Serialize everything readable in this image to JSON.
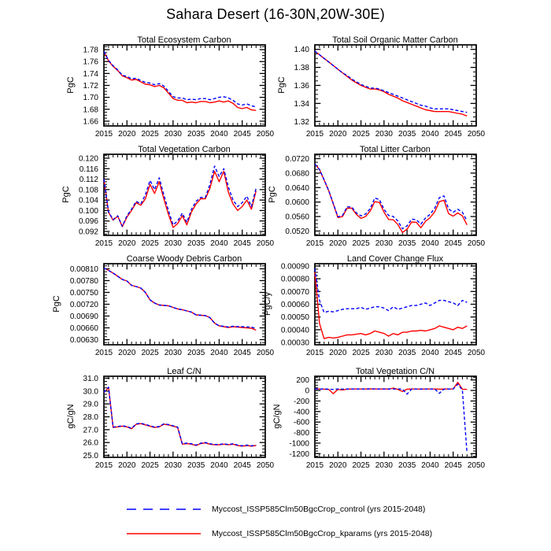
{
  "page_title": "Sahara Desert (16-30N,20W-30E)",
  "years": [
    2015,
    2016,
    2017,
    2018,
    2019,
    2020,
    2021,
    2022,
    2023,
    2024,
    2025,
    2026,
    2027,
    2028,
    2029,
    2030,
    2031,
    2032,
    2033,
    2034,
    2035,
    2036,
    2037,
    2038,
    2039,
    2040,
    2041,
    2042,
    2043,
    2044,
    2045,
    2046,
    2047,
    2048
  ],
  "x_axis": {
    "lim": [
      2015,
      2050
    ],
    "tick_vals": [
      2015,
      2020,
      2025,
      2030,
      2035,
      2040,
      2045,
      2050
    ],
    "tick_labels": [
      "2015",
      "2020",
      "2025",
      "2030",
      "2035",
      "2040",
      "2045",
      "2050"
    ]
  },
  "legend": {
    "entries": [
      {
        "label": "Myccost_ISSP585Clm50BgcCrop_control (yrs 2015-2048)",
        "color": "#0000ff",
        "style": "dashed"
      },
      {
        "label": "Myccost_ISSP585Clm50BgcCrop_kparams (yrs 2015-2048)",
        "color": "#ff0000",
        "style": "solid"
      }
    ]
  },
  "chart_data": [
    {
      "type": "line",
      "title": "Total Ecosystem Carbon",
      "ylabel": "PgC",
      "ylim": [
        1.652,
        1.788
      ],
      "ytick_vals": [
        1.66,
        1.68,
        1.7,
        1.72,
        1.74,
        1.76,
        1.78
      ],
      "ytick_labels": [
        "1.66",
        "1.68",
        "1.70",
        "1.72",
        "1.74",
        "1.76",
        "1.78"
      ],
      "series": [
        {
          "name": "control",
          "color": "#0000ff",
          "dash": true,
          "values": [
            1.777,
            1.762,
            1.753,
            1.746,
            1.737,
            1.735,
            1.731,
            1.732,
            1.728,
            1.725,
            1.724,
            1.721,
            1.723,
            1.719,
            1.71,
            1.701,
            1.699,
            1.699,
            1.696,
            1.697,
            1.696,
            1.698,
            1.698,
            1.696,
            1.698,
            1.7,
            1.701,
            1.699,
            1.695,
            1.689,
            1.687,
            1.689,
            1.686,
            1.684
          ]
        },
        {
          "name": "kparams",
          "color": "#ff0000",
          "dash": false,
          "values": [
            1.777,
            1.761,
            1.752,
            1.745,
            1.736,
            1.733,
            1.729,
            1.73,
            1.726,
            1.722,
            1.721,
            1.718,
            1.72,
            1.716,
            1.707,
            1.698,
            1.695,
            1.695,
            1.691,
            1.692,
            1.691,
            1.693,
            1.693,
            1.691,
            1.692,
            1.694,
            1.692,
            1.694,
            1.69,
            1.683,
            1.681,
            1.683,
            1.679,
            1.678
          ]
        }
      ]
    },
    {
      "type": "line",
      "title": "Total Soil Organic Matter Carbon",
      "ylabel": "PgC",
      "ylim": [
        1.315,
        1.405
      ],
      "ytick_vals": [
        1.32,
        1.34,
        1.36,
        1.38,
        1.4
      ],
      "ytick_labels": [
        "1.32",
        "1.34",
        "1.36",
        "1.38",
        "1.40"
      ],
      "series": [
        {
          "name": "control",
          "color": "#0000ff",
          "dash": true,
          "values": [
            1.398,
            1.394,
            1.39,
            1.386,
            1.382,
            1.378,
            1.374,
            1.371,
            1.367,
            1.364,
            1.361,
            1.359,
            1.357,
            1.357,
            1.356,
            1.354,
            1.352,
            1.35,
            1.348,
            1.346,
            1.344,
            1.342,
            1.34,
            1.338,
            1.337,
            1.335,
            1.334,
            1.334,
            1.334,
            1.334,
            1.333,
            1.332,
            1.331,
            1.33
          ]
        },
        {
          "name": "kparams",
          "color": "#ff0000",
          "dash": false,
          "values": [
            1.398,
            1.394,
            1.39,
            1.386,
            1.382,
            1.378,
            1.374,
            1.37,
            1.366,
            1.363,
            1.36,
            1.358,
            1.356,
            1.356,
            1.355,
            1.353,
            1.35,
            1.348,
            1.346,
            1.343,
            1.341,
            1.339,
            1.337,
            1.335,
            1.333,
            1.332,
            1.331,
            1.331,
            1.331,
            1.331,
            1.33,
            1.329,
            1.328,
            1.326
          ]
        }
      ]
    },
    {
      "type": "line",
      "title": "Total Vegetation Carbon",
      "ylabel": "PgC",
      "ylim": [
        0.0905,
        0.1215
      ],
      "ytick_vals": [
        0.092,
        0.096,
        0.1,
        0.104,
        0.108,
        0.112,
        0.116,
        0.12
      ],
      "ytick_labels": [
        "0.092",
        "0.096",
        "0.100",
        "0.104",
        "0.108",
        "0.112",
        "0.116",
        "0.120"
      ],
      "series": [
        {
          "name": "control",
          "color": "#0000ff",
          "dash": true,
          "values": [
            0.112,
            0.0995,
            0.0965,
            0.098,
            0.094,
            0.098,
            0.1005,
            0.1035,
            0.1025,
            0.106,
            0.1115,
            0.108,
            0.1125,
            0.106,
            0.1,
            0.0945,
            0.096,
            0.099,
            0.0955,
            0.1005,
            0.1035,
            0.105,
            0.105,
            0.11,
            0.117,
            0.113,
            0.116,
            0.109,
            0.104,
            0.1015,
            0.103,
            0.1055,
            0.1015,
            0.1085
          ]
        },
        {
          "name": "kparams",
          "color": "#ff0000",
          "dash": false,
          "values": [
            0.112,
            0.0993,
            0.0963,
            0.0978,
            0.0938,
            0.0975,
            0.1,
            0.103,
            0.102,
            0.1045,
            0.11,
            0.1065,
            0.111,
            0.1045,
            0.0985,
            0.0935,
            0.095,
            0.098,
            0.0945,
            0.0995,
            0.1025,
            0.1045,
            0.1045,
            0.1085,
            0.115,
            0.111,
            0.115,
            0.107,
            0.1025,
            0.1,
            0.1015,
            0.104,
            0.1005,
            0.1075
          ]
        }
      ]
    },
    {
      "type": "line",
      "title": "Total Litter Carbon",
      "ylabel": "PgC",
      "ylim": [
        0.0508,
        0.0732
      ],
      "ytick_vals": [
        0.052,
        0.056,
        0.06,
        0.064,
        0.068,
        0.072
      ],
      "ytick_labels": [
        "0.0520",
        "0.0560",
        "0.0600",
        "0.0640",
        "0.0680",
        "0.0720"
      ],
      "series": [
        {
          "name": "control",
          "color": "#0000ff",
          "dash": true,
          "values": [
            0.0705,
            0.069,
            0.0662,
            0.0632,
            0.0596,
            0.0559,
            0.0563,
            0.0587,
            0.0586,
            0.057,
            0.0562,
            0.0567,
            0.0582,
            0.0611,
            0.0607,
            0.058,
            0.0563,
            0.056,
            0.0548,
            0.0526,
            0.0534,
            0.0553,
            0.0551,
            0.0539,
            0.0556,
            0.0566,
            0.0583,
            0.0612,
            0.0617,
            0.0581,
            0.0572,
            0.058,
            0.0572,
            0.0548
          ]
        },
        {
          "name": "kparams",
          "color": "#ff0000",
          "dash": false,
          "values": [
            0.0705,
            0.069,
            0.0661,
            0.0631,
            0.0595,
            0.0557,
            0.056,
            0.0583,
            0.0583,
            0.0566,
            0.0555,
            0.056,
            0.0575,
            0.0601,
            0.0599,
            0.0572,
            0.0552,
            0.0551,
            0.0538,
            0.0516,
            0.0525,
            0.0545,
            0.0544,
            0.0529,
            0.0547,
            0.0557,
            0.0573,
            0.0601,
            0.0605,
            0.0568,
            0.0561,
            0.057,
            0.0562,
            0.0537
          ]
        }
      ]
    },
    {
      "type": "line",
      "title": "Coarse Woody Debris Carbon",
      "ylabel": "PgC",
      "ylim": [
        0.00617,
        0.00823
      ],
      "ytick_vals": [
        0.0063,
        0.0066,
        0.0069,
        0.0072,
        0.0075,
        0.0078,
        0.0081
      ],
      "ytick_labels": [
        "0.00630",
        "0.00660",
        "0.00690",
        "0.00720",
        "0.00750",
        "0.00780",
        "0.00810"
      ],
      "series": [
        {
          "name": "control",
          "color": "#0000ff",
          "dash": true,
          "values": [
            0.00812,
            0.00806,
            0.00799,
            0.00791,
            0.00783,
            0.00779,
            0.00768,
            0.00765,
            0.00761,
            0.0075,
            0.00731,
            0.00723,
            0.00718,
            0.00717,
            0.00716,
            0.00712,
            0.00708,
            0.00706,
            0.00703,
            0.007,
            0.00693,
            0.00692,
            0.00691,
            0.00686,
            0.00672,
            0.00665,
            0.00664,
            0.00662,
            0.00664,
            0.00663,
            0.00663,
            0.00662,
            0.00662,
            0.00658
          ]
        },
        {
          "name": "kparams",
          "color": "#ff0000",
          "dash": false,
          "values": [
            0.00812,
            0.00806,
            0.00799,
            0.00791,
            0.00783,
            0.00779,
            0.00768,
            0.00765,
            0.00761,
            0.0075,
            0.00731,
            0.00723,
            0.00718,
            0.00717,
            0.00716,
            0.00712,
            0.00708,
            0.00706,
            0.00703,
            0.007,
            0.00693,
            0.00692,
            0.00691,
            0.00686,
            0.00672,
            0.00665,
            0.00663,
            0.00661,
            0.00663,
            0.00662,
            0.00661,
            0.0066,
            0.00659,
            0.00654
          ]
        }
      ]
    },
    {
      "type": "line",
      "title": "Land Cover Change Flux",
      "ylabel": "PgC/y",
      "ylim": [
        0.000282,
        0.000918
      ],
      "ytick_vals": [
        0.0003,
        0.0004,
        0.0005,
        0.0006,
        0.0007,
        0.0008,
        0.0009
      ],
      "ytick_labels": [
        "0.00030",
        "0.00040",
        "0.00050",
        "0.00060",
        "0.00070",
        "0.00080",
        "0.00090"
      ],
      "series": [
        {
          "name": "control",
          "color": "#0000ff",
          "dash": true,
          "values": [
            0.00088,
            0.00063,
            0.000535,
            0.000545,
            0.00054,
            0.00055,
            0.00056,
            0.000565,
            0.000565,
            0.000565,
            0.000575,
            0.00056,
            0.00057,
            0.00058,
            0.00058,
            0.00057,
            0.00055,
            0.00058,
            0.00056,
            0.00057,
            0.00058,
            0.00059,
            0.00059,
            0.0006,
            0.00061,
            0.00059,
            0.00061,
            0.00063,
            0.00063,
            0.00062,
            0.00061,
            0.00059,
            0.00063,
            0.000615
          ]
        },
        {
          "name": "kparams",
          "color": "#ff0000",
          "dash": false,
          "values": [
            0.00085,
            0.00045,
            0.00033,
            0.00034,
            0.000335,
            0.00034,
            0.00035,
            0.00036,
            0.00036,
            0.000365,
            0.00037,
            0.00036,
            0.00037,
            0.00039,
            0.00038,
            0.00037,
            0.00035,
            0.00037,
            0.00036,
            0.00038,
            0.00038,
            0.00039,
            0.00039,
            0.000395,
            0.00039,
            0.0004,
            0.00041,
            0.00043,
            0.00042,
            0.00041,
            0.0004,
            0.00042,
            0.00041,
            0.00043
          ]
        }
      ]
    },
    {
      "type": "line",
      "title": "Leaf C/N",
      "ylabel": "gC/gN",
      "ylim": [
        24.85,
        31.15
      ],
      "ytick_vals": [
        25.0,
        26.0,
        27.0,
        28.0,
        29.0,
        30.0,
        31.0
      ],
      "ytick_labels": [
        "25.0",
        "26.0",
        "27.0",
        "28.0",
        "29.0",
        "30.0",
        "31.0"
      ],
      "series": [
        {
          "name": "control",
          "color": "#0000ff",
          "dash": true,
          "values": [
            29.9,
            30.3,
            27.2,
            27.25,
            27.3,
            27.25,
            27.1,
            27.45,
            27.5,
            27.4,
            27.3,
            27.2,
            27.25,
            27.45,
            27.4,
            27.3,
            27.2,
            25.9,
            25.95,
            25.9,
            25.8,
            25.95,
            26.0,
            25.9,
            25.85,
            25.85,
            25.9,
            25.85,
            25.9,
            25.8,
            25.75,
            25.8,
            25.75,
            25.8
          ]
        },
        {
          "name": "kparams",
          "color": "#ff0000",
          "dash": false,
          "values": [
            29.88,
            30.28,
            27.17,
            27.22,
            27.27,
            27.22,
            27.07,
            27.42,
            27.47,
            27.37,
            27.27,
            27.17,
            27.22,
            27.42,
            27.37,
            27.27,
            27.17,
            25.87,
            25.92,
            25.87,
            25.77,
            25.92,
            25.97,
            25.87,
            25.82,
            25.82,
            25.87,
            25.82,
            25.87,
            25.77,
            25.72,
            25.77,
            25.72,
            25.77
          ]
        }
      ]
    },
    {
      "type": "line",
      "title": "Total Vegetation C/N",
      "ylabel": "gC/gN",
      "ylim": [
        -1270,
        270
      ],
      "ytick_vals": [
        -1200,
        -1000,
        -800,
        -600,
        -400,
        -200,
        0,
        200
      ],
      "ytick_labels": [
        "-1200",
        "-1000",
        "-800",
        "-600",
        "-400",
        "-200",
        "0",
        "200"
      ],
      "series": [
        {
          "name": "control",
          "color": "#0000ff",
          "dash": true,
          "values": [
            30,
            28,
            28,
            25,
            20,
            28,
            25,
            28,
            28,
            28,
            28,
            30,
            30,
            30,
            28,
            28,
            30,
            28,
            28,
            25,
            -70,
            28,
            28,
            28,
            28,
            28,
            28,
            -55,
            25,
            28,
            28,
            120,
            10,
            -1190
          ]
        },
        {
          "name": "kparams",
          "color": "#ff0000",
          "dash": false,
          "values": [
            30,
            28,
            25,
            20,
            -60,
            20,
            10,
            25,
            28,
            28,
            28,
            28,
            30,
            28,
            28,
            30,
            25,
            45,
            20,
            -20,
            25,
            28,
            28,
            25,
            28,
            28,
            28,
            25,
            28,
            28,
            30,
            155,
            25,
            20
          ]
        }
      ]
    }
  ]
}
